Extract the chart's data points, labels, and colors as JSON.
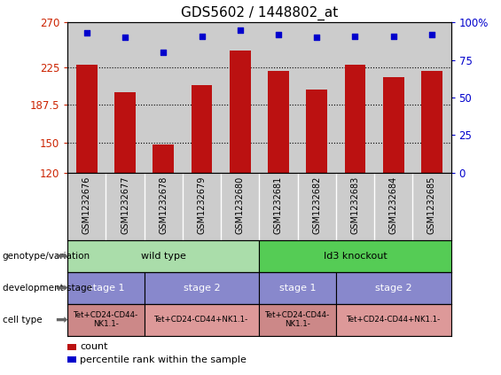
{
  "title": "GDS5602 / 1448802_at",
  "samples": [
    "GSM1232676",
    "GSM1232677",
    "GSM1232678",
    "GSM1232679",
    "GSM1232680",
    "GSM1232681",
    "GSM1232682",
    "GSM1232683",
    "GSM1232684",
    "GSM1232685"
  ],
  "counts": [
    228,
    200,
    148,
    207,
    242,
    222,
    203,
    228,
    215,
    222
  ],
  "percentile": [
    93,
    90,
    80,
    91,
    95,
    92,
    90,
    91,
    91,
    92
  ],
  "ymin": 120,
  "ymax": 270,
  "yticks": [
    120,
    150,
    187.5,
    225,
    270
  ],
  "ytick_labels": [
    "120",
    "150",
    "187.5",
    "225",
    "270"
  ],
  "right_yticks": [
    0,
    25,
    50,
    75,
    100
  ],
  "right_ytick_labels": [
    "0",
    "25",
    "50",
    "75",
    "100%"
  ],
  "bar_color": "#bb1111",
  "dot_color": "#0000cc",
  "bar_width": 0.55,
  "bg_color": "#cccccc",
  "wt_color": "#aaddaa",
  "ko_color": "#55cc55",
  "stage_color": "#8888cc",
  "cell_light": "#cc8888",
  "cell_dark": "#dd9999",
  "left_label_color": "#cc2200",
  "right_label_color": "#0000cc",
  "stage1_wt": [
    0,
    2
  ],
  "stage2_wt": [
    2,
    5
  ],
  "stage1_ko": [
    5,
    7
  ],
  "stage2_ko": [
    7,
    10
  ]
}
